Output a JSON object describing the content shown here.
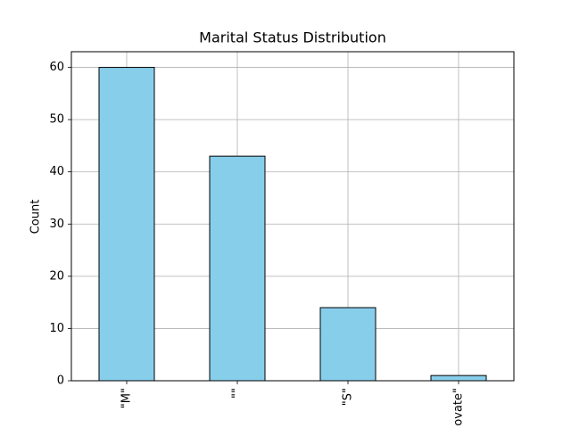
{
  "chart_data": {
    "type": "bar",
    "title": "Marital Status Distribution",
    "y_label": "Count",
    "categories": [
      "\"M\"",
      "\"\"",
      "\"S\"",
      "ovate\""
    ],
    "values": [
      60,
      43,
      14,
      1
    ],
    "color": "#87ceeb",
    "edgecolor": "#000000",
    "ylim": [
      0,
      63
    ],
    "yticks": [
      0,
      10,
      20,
      30,
      40,
      50,
      60
    ],
    "grid": true
  }
}
